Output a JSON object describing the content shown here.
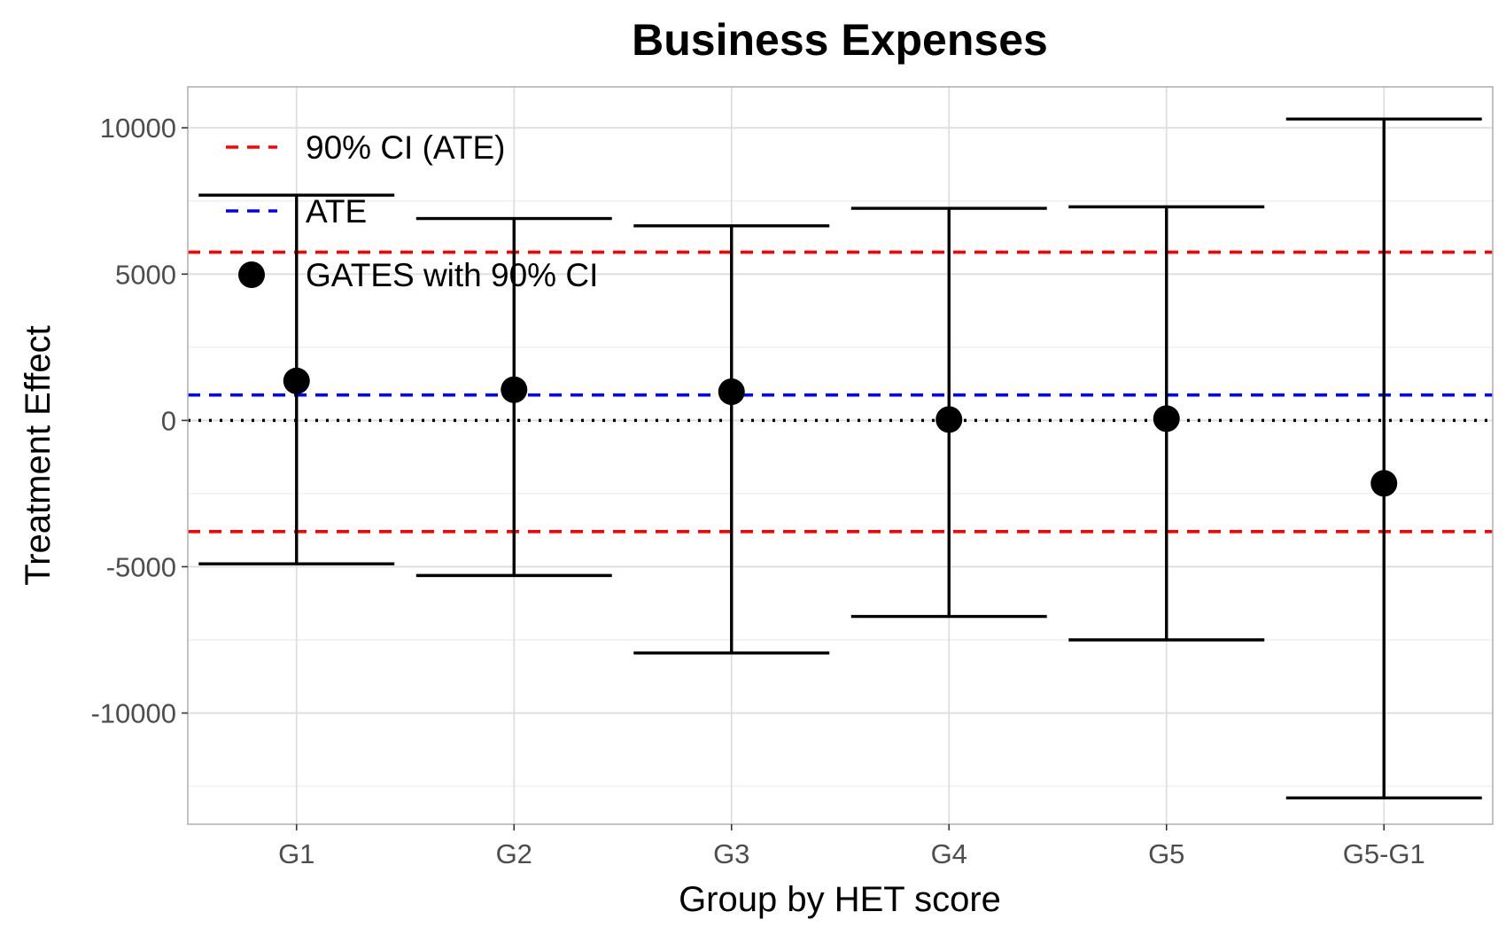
{
  "chart_data": {
    "type": "scatter",
    "title": "Business Expenses",
    "xlabel": "Group by HET score",
    "ylabel": "Treatment Effect",
    "categories": [
      "G1",
      "G2",
      "G3",
      "G4",
      "G5",
      "G5-G1"
    ],
    "ylim": [
      -13800,
      11400
    ],
    "yticks": [
      10000,
      5000,
      0,
      -5000,
      -10000
    ],
    "ytick_labels": [
      "10000",
      "5000",
      "0",
      "-5000",
      "-10000"
    ],
    "grid": true,
    "series": [
      {
        "name": "GATES with 90% CI",
        "estimates": [
          1350,
          1050,
          980,
          30,
          60,
          -2150
        ],
        "ci_low": [
          -4900,
          -5300,
          -7950,
          -6700,
          -7500,
          -12900
        ],
        "ci_high": [
          7700,
          6900,
          6650,
          7250,
          7300,
          10300
        ]
      }
    ],
    "reference_lines": [
      {
        "name": "90% CI (ATE)",
        "value": 5750,
        "color": "#ff0000",
        "style": "dashed"
      },
      {
        "name": "90% CI (ATE)",
        "value": -3800,
        "color": "#ff0000",
        "style": "dashed"
      },
      {
        "name": "ATE",
        "value": 870,
        "color": "#0000ff",
        "style": "dashed"
      },
      {
        "name": "zero",
        "value": 0,
        "color": "#000000",
        "style": "dotted"
      }
    ],
    "legend": {
      "position": "top-left",
      "entries": [
        {
          "label": "90% CI (ATE)",
          "kind": "dashed-line",
          "color": "#ff0000"
        },
        {
          "label": "ATE",
          "kind": "dashed-line",
          "color": "#0000ff"
        },
        {
          "label": "GATES with 90% CI",
          "kind": "point",
          "color": "#000000"
        }
      ]
    }
  }
}
